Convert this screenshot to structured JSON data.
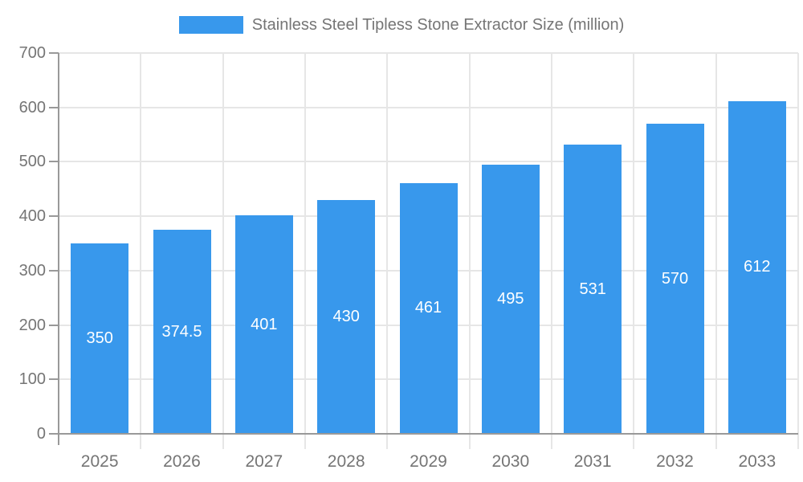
{
  "chart_data": {
    "type": "bar",
    "title": "Stainless Steel Tipless Stone Extractor Size (million)",
    "legend_position": "top",
    "categories": [
      "2025",
      "2026",
      "2027",
      "2028",
      "2029",
      "2030",
      "2031",
      "2032",
      "2033"
    ],
    "series": [
      {
        "name": "Stainless Steel Tipless Stone Extractor Size (million)",
        "values": [
          350,
          374.5,
          401,
          430,
          461,
          495,
          531,
          570,
          612
        ],
        "value_labels": [
          "350",
          "374.5",
          "401",
          "430",
          "461",
          "495",
          "531",
          "570",
          "612"
        ]
      }
    ],
    "xlabel": "",
    "ylabel": "",
    "ylim": [
      0,
      700
    ],
    "yticks": [
      0,
      100,
      200,
      300,
      400,
      500,
      600,
      700
    ],
    "grid": true,
    "colors": {
      "bar": "#3898EC",
      "axis_line": "#999999",
      "grid_line": "#e6e6e6",
      "tick_text": "#757575",
      "value_text": "#ffffff",
      "background": "#ffffff"
    }
  }
}
